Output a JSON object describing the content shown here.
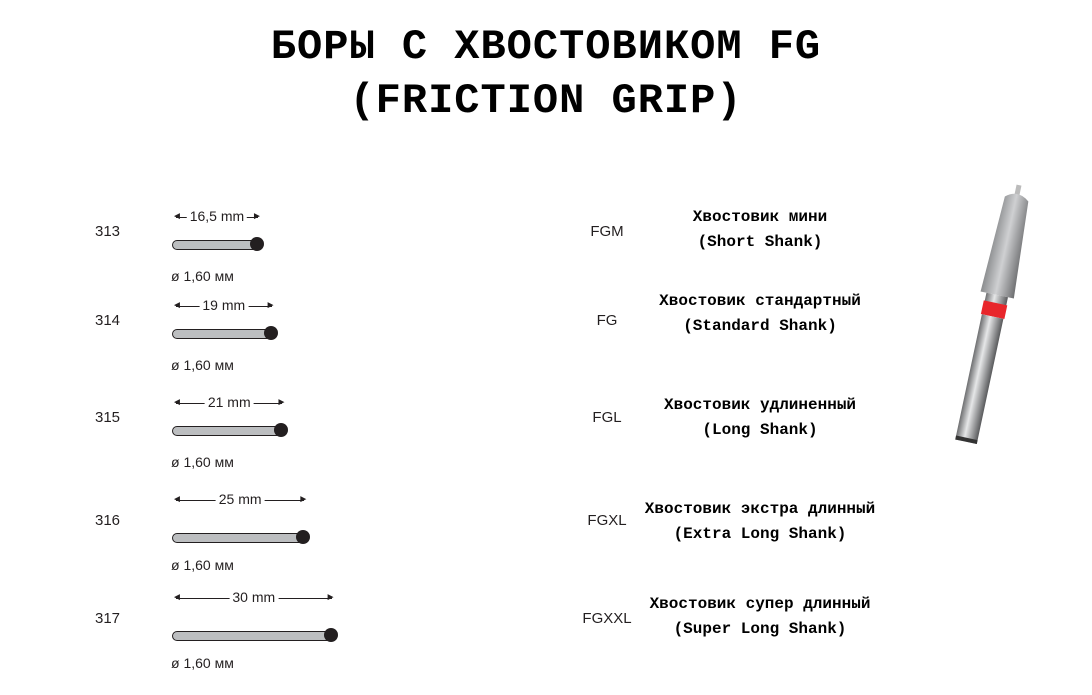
{
  "title": {
    "line1": "БОРЫ С ХВОСТОВИКОМ FG",
    "line2": "(FRICTION GRIP)"
  },
  "burs": [
    {
      "code": "313",
      "length_mm": 16.5,
      "length_label": "16,5 mm",
      "diameter": "ø 1,60 мм"
    },
    {
      "code": "314",
      "length_mm": 19,
      "length_label": "19 mm",
      "diameter": "ø 1,60 мм"
    },
    {
      "code": "315",
      "length_mm": 21,
      "length_label": "21 mm",
      "diameter": "ø 1,60 мм"
    },
    {
      "code": "316",
      "length_mm": 25,
      "length_label": "25 mm",
      "diameter": "ø 1,60 мм"
    },
    {
      "code": "317",
      "length_mm": 30,
      "length_label": "30 mm",
      "diameter": "ø 1,60 мм"
    }
  ],
  "shanks": [
    {
      "code": "FGM",
      "name_ru": "Хвостовик мини",
      "name_en": "(Short Shank)"
    },
    {
      "code": "FG",
      "name_ru": "Хвостовик стандартный",
      "name_en": "(Standard Shank)"
    },
    {
      "code": "FGL",
      "name_ru": "Хвостовик удлиненный",
      "name_en": "(Long Shank)"
    },
    {
      "code": "FGXL",
      "name_ru": "Хвостовик экстра длинный",
      "name_en": "(Extra Long Shank)"
    },
    {
      "code": "FGXXL",
      "name_ru": "Хвостовик супер длинный",
      "name_en": "(Super Long Shank)"
    }
  ],
  "colors": {
    "shank_fill": "#bcbec0",
    "ring": "#e8262b",
    "text": "#231f20"
  }
}
